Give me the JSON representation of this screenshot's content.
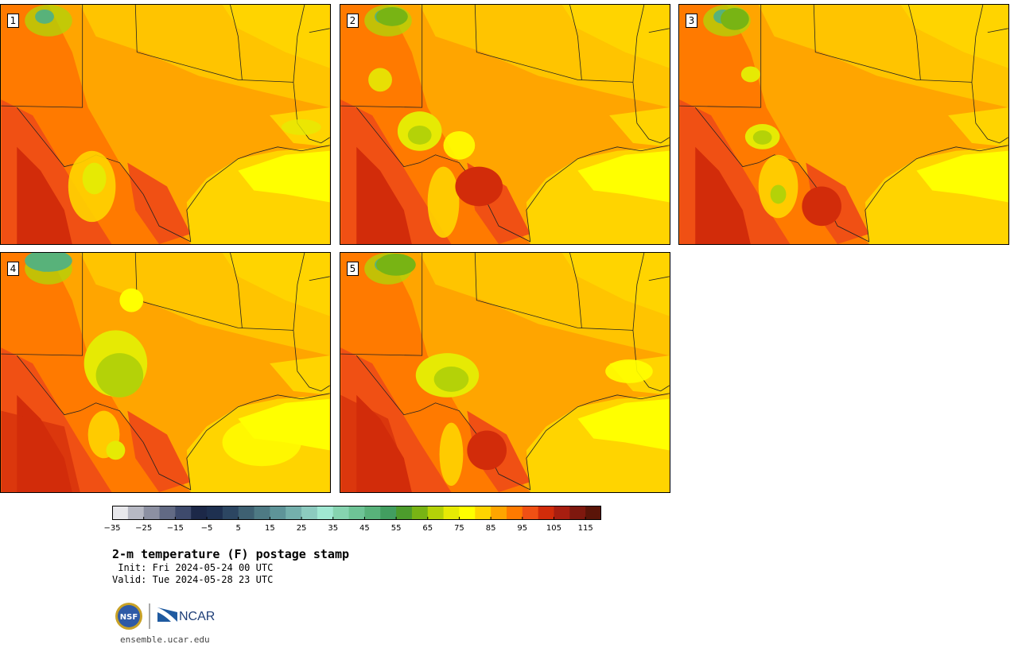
{
  "panels": [
    {
      "label": "1"
    },
    {
      "label": "2"
    },
    {
      "label": "3"
    },
    {
      "label": "4"
    },
    {
      "label": "5"
    }
  ],
  "colorbar": {
    "colors": [
      "#e8e8ec",
      "#b7b9c4",
      "#8c90a2",
      "#626a84",
      "#3e4a6c",
      "#1c2848",
      "#1e3050",
      "#2c4662",
      "#3e6072",
      "#4e7a84",
      "#5e9498",
      "#74b0ac",
      "#8ccbbf",
      "#a0e8d2",
      "#86d4b0",
      "#6ec496",
      "#58b27a",
      "#429e60",
      "#4c9c2c",
      "#78b414",
      "#b4d208",
      "#e6ea04",
      "#ffff00",
      "#ffd400",
      "#ffa500",
      "#ff7a00",
      "#f05014",
      "#d22c0a",
      "#a81e10",
      "#7e180e",
      "#5a1408"
    ],
    "ticks": [
      "−35",
      "−25",
      "−15",
      "−5",
      "5",
      "15",
      "25",
      "35",
      "45",
      "55",
      "65",
      "75",
      "85",
      "95",
      "105",
      "115"
    ]
  },
  "title": "2-m temperature (F) postage stamp",
  "init": " Init: Fri 2024-05-24 00 UTC",
  "valid": "Valid: Tue 2024-05-28 23 UTC",
  "logos": {
    "nsf": "NSF",
    "ncar": "NCAR"
  },
  "site": "ensemble.ucar.edu"
}
